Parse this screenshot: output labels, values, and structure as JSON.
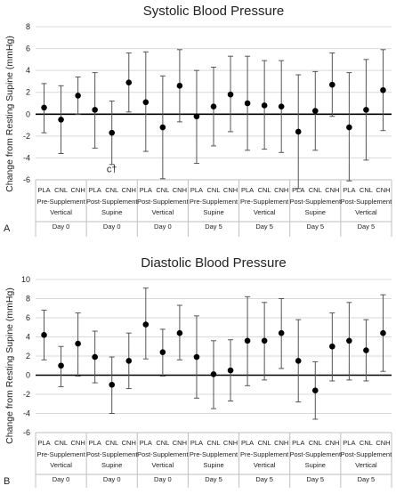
{
  "panel_labels": [
    "A",
    "B"
  ],
  "chart_data": [
    {
      "type": "scatter",
      "title": "Systolic Blood Pressure",
      "ylabel": "Change from Resting Supine (mmHg)",
      "ylim": [
        -6,
        8
      ],
      "yticks": [
        -6,
        -4,
        -2,
        0,
        2,
        4,
        6,
        8
      ],
      "grid": true,
      "conditions": [
        "PLA",
        "CNL",
        "CNH"
      ],
      "groups": [
        {
          "phase": "Pre-Supplement",
          "posture": "Vertical",
          "day": "Day 0"
        },
        {
          "phase": "Post-Supplement",
          "posture": "Supine",
          "day": "Day 0"
        },
        {
          "phase": "Post-Supplement",
          "posture": "Vertical",
          "day": "Day 0"
        },
        {
          "phase": "Pre-Supplement",
          "posture": "Supine",
          "day": "Day 5"
        },
        {
          "phase": "Pre-Supplement",
          "posture": "Vertical",
          "day": "Day 5"
        },
        {
          "phase": "Post-Supplement",
          "posture": "Supine",
          "day": "Day 5"
        },
        {
          "phase": "Post-Supplement",
          "posture": "Vertical",
          "day": "Day 5"
        }
      ],
      "means": [
        0.6,
        -0.5,
        1.7,
        0.4,
        -1.7,
        2.9,
        1.1,
        -1.2,
        2.6,
        -0.2,
        0.7,
        1.8,
        1.0,
        0.8,
        0.7,
        -1.6,
        0.3,
        2.7,
        -1.2,
        0.4,
        2.2
      ],
      "err_high": [
        2.8,
        2.6,
        3.4,
        3.8,
        1.2,
        5.6,
        5.7,
        3.5,
        5.9,
        4.0,
        4.3,
        5.3,
        5.3,
        4.9,
        4.9,
        3.6,
        3.9,
        5.6,
        3.8,
        5.0,
        5.9
      ],
      "err_low": [
        -1.7,
        -3.6,
        0.0,
        -3.1,
        -4.6,
        0.2,
        -3.4,
        -5.9,
        -0.7,
        -4.5,
        -2.9,
        -1.6,
        -3.3,
        -3.2,
        -3.5,
        -6.8,
        -3.3,
        -0.2,
        -6.1,
        -4.2,
        -1.5
      ],
      "annotations": [
        {
          "text": "c†",
          "group": 1,
          "condition": "CNL",
          "y": -5.3
        }
      ]
    },
    {
      "type": "scatter",
      "title": "Diastolic Blood Pressure",
      "ylabel": "Change from Resting Supine (mmHg)",
      "ylim": [
        -6,
        10
      ],
      "yticks": [
        -6,
        -4,
        -2,
        0,
        2,
        4,
        6,
        8,
        10
      ],
      "grid": true,
      "conditions": [
        "PLA",
        "CNL",
        "CNH"
      ],
      "groups": [
        {
          "phase": "Pre-Supplement",
          "posture": "Vertical",
          "day": "Day 0"
        },
        {
          "phase": "Post-Supplement",
          "posture": "Supine",
          "day": "Day 0"
        },
        {
          "phase": "Post-Supplement",
          "posture": "Vertical",
          "day": "Day 0"
        },
        {
          "phase": "Pre-Supplement",
          "posture": "Supine",
          "day": "Day 5"
        },
        {
          "phase": "Pre-Supplement",
          "posture": "Vertical",
          "day": "Day 5"
        },
        {
          "phase": "Post-Supplement",
          "posture": "Supine",
          "day": "Day 5"
        },
        {
          "phase": "Post-Supplement",
          "posture": "Vertical",
          "day": "Day 5"
        }
      ],
      "means": [
        4.2,
        1.0,
        3.3,
        1.9,
        -1.0,
        1.5,
        5.3,
        2.4,
        4.4,
        1.9,
        0.1,
        0.5,
        3.6,
        3.6,
        4.4,
        1.5,
        -1.6,
        3.0,
        3.6,
        2.6,
        4.4
      ],
      "err_high": [
        6.8,
        3.0,
        6.5,
        4.6,
        1.9,
        4.4,
        9.1,
        4.8,
        7.3,
        6.2,
        3.6,
        3.7,
        8.2,
        7.6,
        8.0,
        5.8,
        1.4,
        6.5,
        7.6,
        5.8,
        8.4
      ],
      "err_low": [
        1.6,
        -1.2,
        -0.1,
        -0.8,
        -4.0,
        -1.4,
        1.7,
        -0.1,
        1.6,
        -2.4,
        -3.5,
        -2.7,
        -1.1,
        -0.5,
        0.7,
        -2.8,
        -4.6,
        -0.6,
        -0.5,
        -0.6,
        0.4
      ],
      "annotations": []
    }
  ]
}
